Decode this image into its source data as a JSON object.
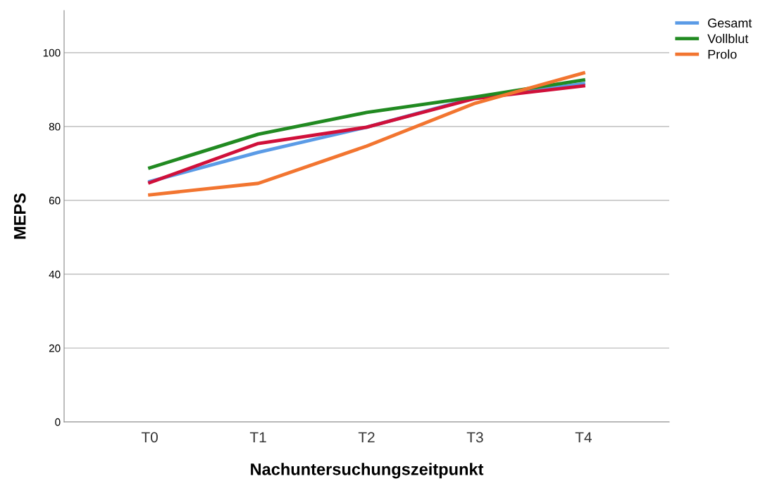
{
  "chart_data": {
    "type": "line",
    "xlabel": "Nachuntersuchungszeitpunkt",
    "ylabel": "MEPS",
    "categories": [
      "T0",
      "T1",
      "T2",
      "T3",
      "T4"
    ],
    "series": [
      {
        "name": "Gesamt",
        "color": "#5b9be6",
        "values": [
          65.1,
          73.0,
          79.8,
          87.8,
          91.6
        ]
      },
      {
        "color": "#d0103a",
        "values": [
          64.8,
          75.4,
          79.8,
          87.6,
          91.0
        ]
      },
      {
        "name": "Vollblut",
        "color": "#218a21",
        "values": [
          68.8,
          77.9,
          83.8,
          88.0,
          92.6
        ]
      },
      {
        "name": "Prolo",
        "color": "#f27530",
        "values": [
          61.5,
          64.6,
          74.7,
          86.3,
          94.5
        ]
      }
    ],
    "ylim": [
      0,
      111.4
    ],
    "yticks": [
      0,
      20,
      40,
      60,
      80,
      100
    ],
    "grid": "y",
    "legend": "top right",
    "marker": "none",
    "line_style": "solid"
  }
}
